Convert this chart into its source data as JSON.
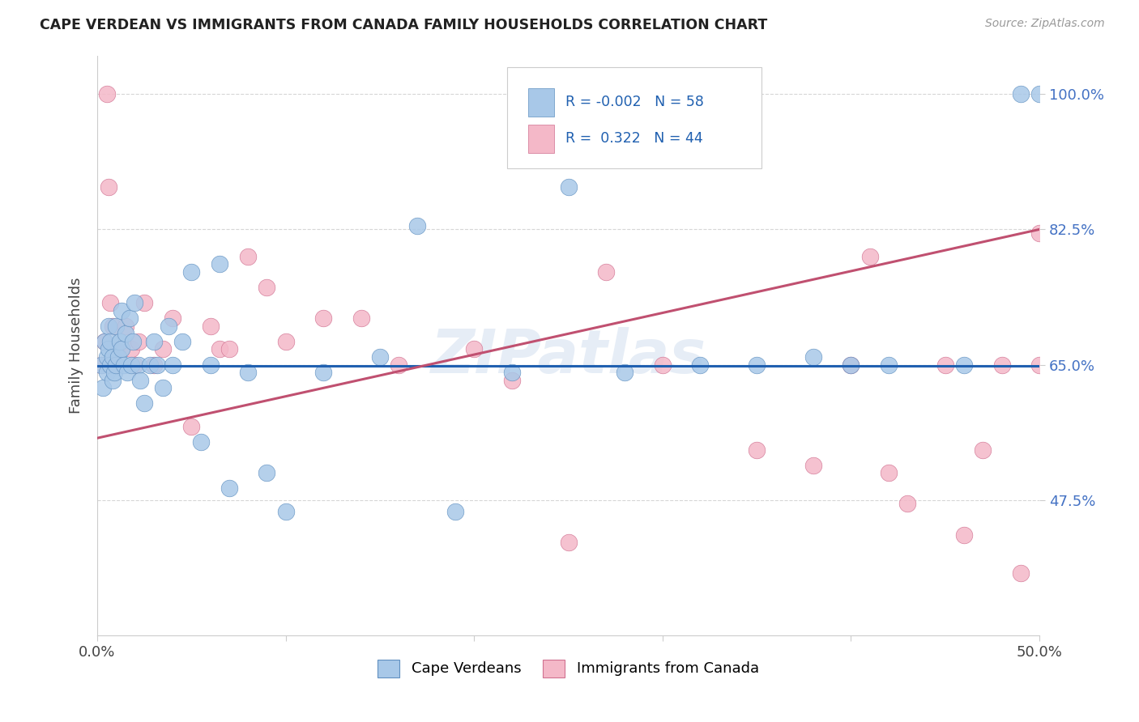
{
  "title": "CAPE VERDEAN VS IMMIGRANTS FROM CANADA FAMILY HOUSEHOLDS CORRELATION CHART",
  "source": "Source: ZipAtlas.com",
  "ylabel": "Family Households",
  "x_min": 0.0,
  "x_max": 0.5,
  "y_min": 0.3,
  "y_max": 1.05,
  "y_ticks": [
    0.475,
    0.65,
    0.825,
    1.0
  ],
  "y_tick_labels": [
    "47.5%",
    "65.0%",
    "82.5%",
    "100.0%"
  ],
  "x_ticks": [
    0.0,
    0.1,
    0.2,
    0.3,
    0.4,
    0.5
  ],
  "x_tick_labels": [
    "0.0%",
    "",
    "",
    "",
    "",
    "50.0%"
  ],
  "blue_color": "#a8c8e8",
  "pink_color": "#f4b8c8",
  "blue_edge_color": "#6090c0",
  "pink_edge_color": "#d07090",
  "blue_line_color": "#2060b0",
  "pink_line_color": "#c05070",
  "watermark": "ZIPatlas",
  "blue_line_x": [
    0.0,
    0.5
  ],
  "blue_line_y": [
    0.648,
    0.648
  ],
  "pink_line_x": [
    0.0,
    0.5
  ],
  "pink_line_y": [
    0.555,
    0.825
  ],
  "blue_scatter_x": [
    0.002,
    0.003,
    0.004,
    0.005,
    0.005,
    0.006,
    0.006,
    0.007,
    0.007,
    0.008,
    0.008,
    0.009,
    0.01,
    0.01,
    0.011,
    0.012,
    0.013,
    0.013,
    0.014,
    0.015,
    0.016,
    0.017,
    0.018,
    0.019,
    0.02,
    0.022,
    0.023,
    0.025,
    0.028,
    0.03,
    0.032,
    0.035,
    0.038,
    0.04,
    0.045,
    0.05,
    0.055,
    0.06,
    0.065,
    0.07,
    0.08,
    0.09,
    0.1,
    0.12,
    0.15,
    0.17,
    0.19,
    0.22,
    0.25,
    0.28,
    0.32,
    0.35,
    0.38,
    0.4,
    0.42,
    0.46,
    0.49,
    0.5
  ],
  "blue_scatter_y": [
    0.65,
    0.62,
    0.68,
    0.66,
    0.64,
    0.7,
    0.67,
    0.65,
    0.68,
    0.63,
    0.66,
    0.64,
    0.65,
    0.7,
    0.66,
    0.68,
    0.72,
    0.67,
    0.65,
    0.69,
    0.64,
    0.71,
    0.65,
    0.68,
    0.73,
    0.65,
    0.63,
    0.6,
    0.65,
    0.68,
    0.65,
    0.62,
    0.7,
    0.65,
    0.68,
    0.77,
    0.55,
    0.65,
    0.78,
    0.49,
    0.64,
    0.51,
    0.46,
    0.64,
    0.66,
    0.83,
    0.46,
    0.64,
    0.88,
    0.64,
    0.65,
    0.65,
    0.66,
    0.65,
    0.65,
    0.65,
    1.0,
    1.0
  ],
  "pink_scatter_x": [
    0.002,
    0.004,
    0.005,
    0.006,
    0.007,
    0.008,
    0.01,
    0.012,
    0.015,
    0.018,
    0.02,
    0.022,
    0.025,
    0.03,
    0.035,
    0.04,
    0.05,
    0.06,
    0.065,
    0.07,
    0.08,
    0.09,
    0.1,
    0.12,
    0.14,
    0.16,
    0.2,
    0.22,
    0.25,
    0.27,
    0.3,
    0.35,
    0.38,
    0.4,
    0.41,
    0.42,
    0.43,
    0.45,
    0.46,
    0.47,
    0.48,
    0.49,
    0.5,
    0.5
  ],
  "pink_scatter_y": [
    0.65,
    0.68,
    1.0,
    0.88,
    0.73,
    0.7,
    0.65,
    0.67,
    0.7,
    0.67,
    0.65,
    0.68,
    0.73,
    0.65,
    0.67,
    0.71,
    0.57,
    0.7,
    0.67,
    0.67,
    0.79,
    0.75,
    0.68,
    0.71,
    0.71,
    0.65,
    0.67,
    0.63,
    0.42,
    0.77,
    0.65,
    0.54,
    0.52,
    0.65,
    0.79,
    0.51,
    0.47,
    0.65,
    0.43,
    0.54,
    0.65,
    0.38,
    0.65,
    0.82
  ]
}
